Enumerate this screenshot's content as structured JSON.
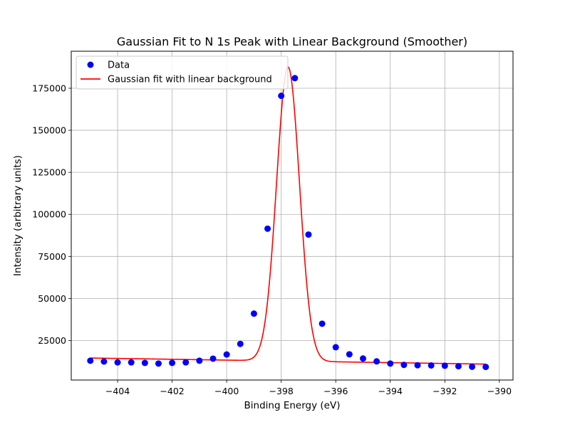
{
  "chart_data": {
    "type": "scatter",
    "title": "Gaussian Fit to N 1s Peak with Linear Background (Smoother)",
    "xlabel": "Binding Energy (eV)",
    "ylabel": "Intensity (arbitrary units)",
    "xlim": [
      -405.7,
      -389.5
    ],
    "ylim": [
      1500,
      197000
    ],
    "xticks": [
      -404,
      -402,
      -400,
      -398,
      -396,
      -394,
      -392,
      -390
    ],
    "yticks": [
      25000,
      50000,
      75000,
      100000,
      125000,
      150000,
      175000
    ],
    "grid": true,
    "legend_position": "top-left",
    "series": [
      {
        "name": "Data",
        "kind": "scatter",
        "color": "#0000ff",
        "x": [
          -405,
          -404.5,
          -404,
          -403.5,
          -403,
          -402.5,
          -402,
          -401.5,
          -401,
          -400.5,
          -400,
          -399.5,
          -399,
          -398.5,
          -398,
          -397.5,
          -397,
          -396.5,
          -396,
          -395.5,
          -395,
          -394.5,
          -394,
          -393.5,
          -393,
          -392.5,
          -392,
          -391.5,
          -391,
          -390.5
        ],
        "y": [
          13000,
          12500,
          12000,
          12000,
          11700,
          11300,
          11700,
          12000,
          13000,
          14200,
          16700,
          23000,
          41000,
          91500,
          170500,
          181000,
          88000,
          35000,
          21000,
          16800,
          14300,
          12600,
          11300,
          10500,
          10300,
          10200,
          10000,
          9700,
          9400,
          9300
        ]
      },
      {
        "name": "Gaussian fit with linear background",
        "kind": "line",
        "color": "#ff0000",
        "model": {
          "form": "amplitude * exp(-(x - center)^2 / (2 * sigma^2)) + slope * x + intercept",
          "amplitude": 174900,
          "center": -397.75,
          "sigma": 0.42,
          "slope": -250,
          "intercept": -86660,
          "x_range": [
            -405,
            -390.5
          ]
        }
      }
    ]
  }
}
